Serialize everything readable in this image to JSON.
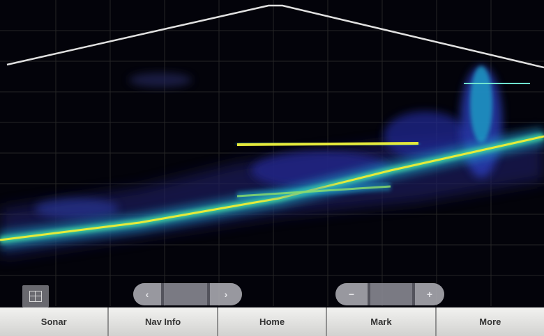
{
  "colors": {
    "background": "#03030a",
    "grid": "#2a2a2a",
    "depth_line": "#e0e0e0",
    "echo_low": "#2a2d8c",
    "echo_mid": "#1fa5c8",
    "echo_high": "#e6ea3a",
    "softkey_bg": "#e6e6e4",
    "overlay_button": "#a6a6ac"
  },
  "sonar": {
    "grid": true
  },
  "zoom_controls": {
    "minus_label": "−",
    "value_label": "",
    "plus_label": "+"
  },
  "pan_controls": {
    "left_icon": "chevron-left-icon",
    "right_icon": "chevron-right-icon"
  },
  "softkeys": [
    {
      "label": "Sonar"
    },
    {
      "label": "Nav Info"
    },
    {
      "label": "Home"
    },
    {
      "label": "Mark"
    },
    {
      "label": "More"
    }
  ]
}
